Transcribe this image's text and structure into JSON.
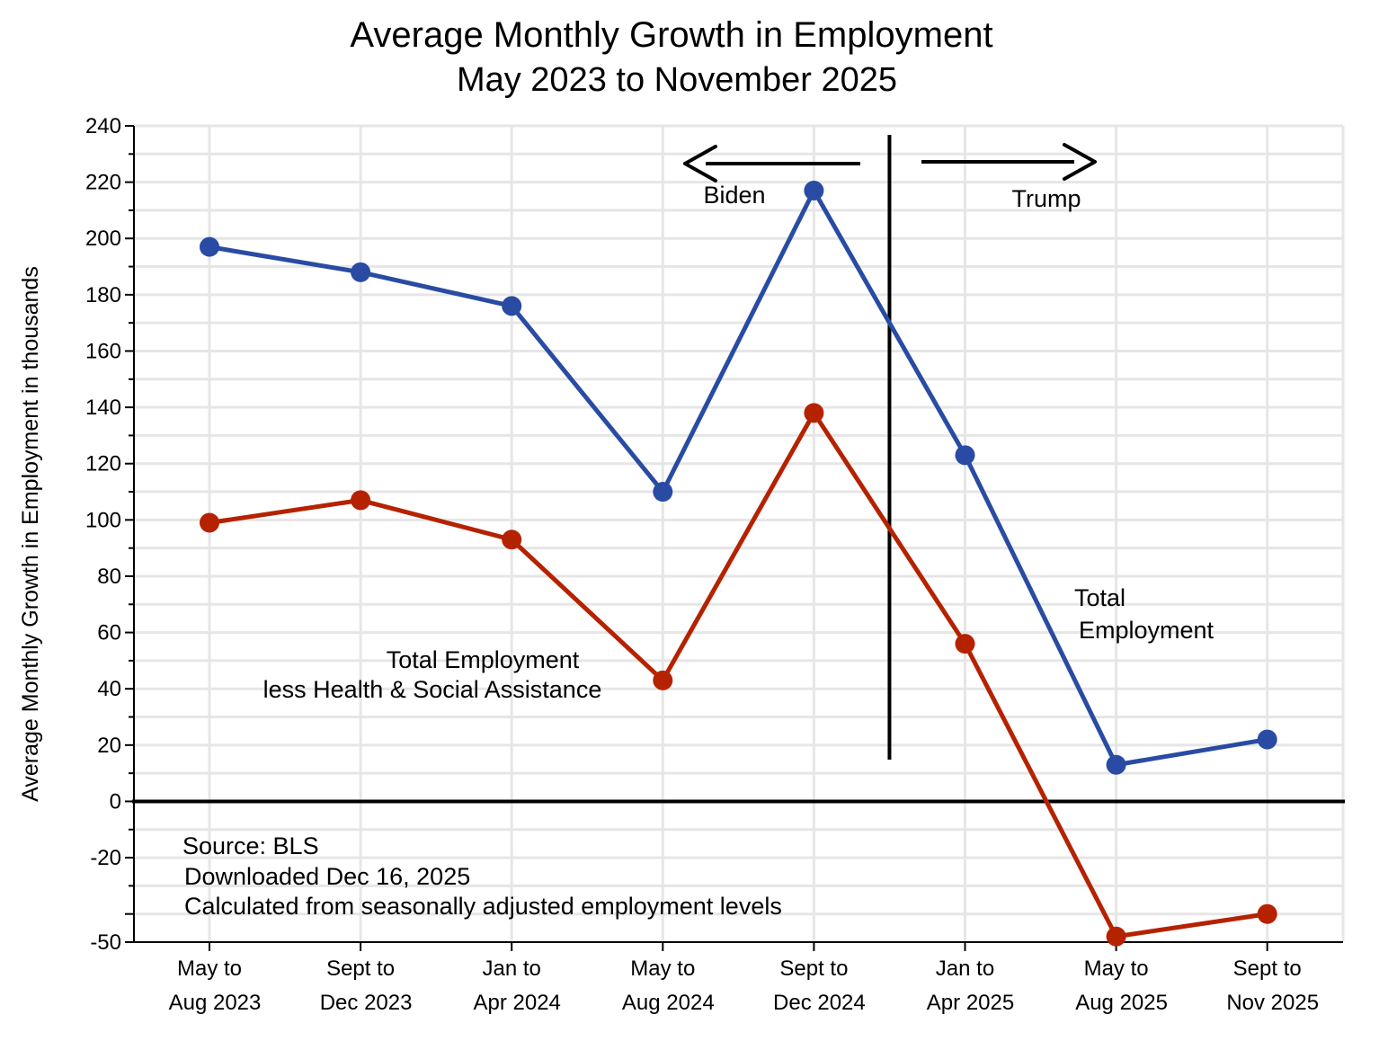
{
  "chart_data": {
    "type": "line",
    "title": "Average Monthly Growth in Employment",
    "subtitle": "May 2023 to November 2025",
    "ylabel": "Average Monthly Growth in Employment in thousands",
    "xlabel": "",
    "ylim": [
      -50,
      240
    ],
    "yticks": [
      240,
      220,
      200,
      180,
      160,
      140,
      120,
      100,
      80,
      60,
      40,
      20,
      0,
      -20,
      -50
    ],
    "grid": true,
    "categories": [
      [
        "May to",
        "Aug 2023"
      ],
      [
        "Sept to",
        "Dec 2023"
      ],
      [
        "Jan to",
        "Apr 2024"
      ],
      [
        "May to",
        "Aug 2024"
      ],
      [
        "Sept to",
        "Dec 2024"
      ],
      [
        "Jan to",
        "Apr 2025"
      ],
      [
        "May to",
        "Aug 2025"
      ],
      [
        "Sept to",
        "Nov 2025"
      ]
    ],
    "series": [
      {
        "name": "Total Employment",
        "label_lines": [
          "Total",
          "Employment"
        ],
        "color": "#2a4ba3",
        "values": [
          197,
          188,
          176,
          110,
          217,
          123,
          13,
          22
        ]
      },
      {
        "name": "Total Employment less Health & Social Assistance",
        "label_lines": [
          "Total Employment",
          "less Health & Social Assistance"
        ],
        "color": "#b52200",
        "values": [
          99,
          107,
          93,
          43,
          138,
          56,
          -48,
          -40
        ]
      }
    ],
    "divider": {
      "after_category_index": 4,
      "left_label": "Biden",
      "right_label": "Trump"
    },
    "notes": [
      "Source:  BLS",
      "Downloaded Dec 16, 2025",
      "Calculated from seasonally adjusted employment levels"
    ]
  }
}
